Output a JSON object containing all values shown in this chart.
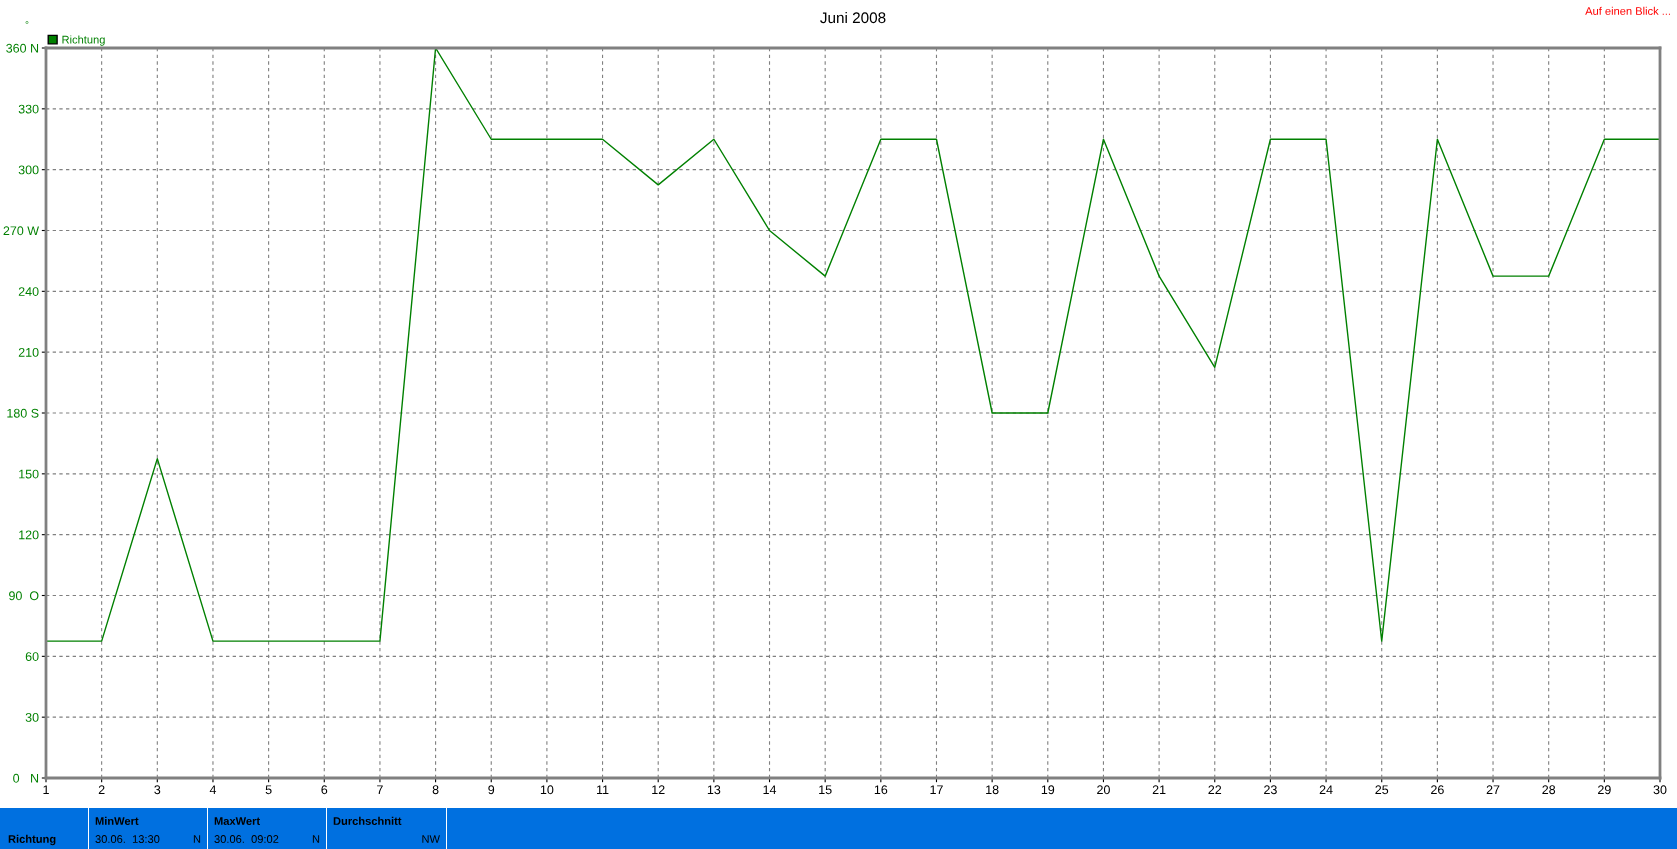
{
  "chart_data": {
    "type": "line",
    "title": "Juni 2008",
    "ylabel": "°",
    "x": [
      1,
      2,
      3,
      4,
      5,
      6,
      7,
      8,
      9,
      10,
      11,
      12,
      13,
      14,
      15,
      16,
      17,
      18,
      19,
      20,
      21,
      22,
      23,
      24,
      25,
      26,
      27,
      28,
      29,
      30
    ],
    "series": [
      {
        "name": "Richtung",
        "color": "#008000",
        "values": [
          67.5,
          67.5,
          157.5,
          67.5,
          67.5,
          67.5,
          67.5,
          360,
          315,
          315,
          315,
          292.5,
          315,
          270,
          247.5,
          315,
          315,
          180,
          180,
          315,
          247.5,
          202.5,
          315,
          315,
          67.5,
          315,
          247.5,
          247.5,
          315,
          315
        ]
      }
    ],
    "xlim": [
      1,
      30
    ],
    "xticks": [
      1,
      2,
      3,
      4,
      5,
      6,
      7,
      8,
      9,
      10,
      11,
      12,
      13,
      14,
      15,
      16,
      17,
      18,
      19,
      20,
      21,
      22,
      23,
      24,
      25,
      26,
      27,
      28,
      29,
      30
    ],
    "ylim": [
      0,
      360
    ],
    "yticks": [
      {
        "value": 0,
        "label": "0   N"
      },
      30,
      60,
      {
        "value": 90,
        "label": "90  O"
      },
      120,
      150,
      {
        "value": 180,
        "label": "180 S"
      },
      210,
      240,
      {
        "value": 270,
        "label": "270 W"
      },
      300,
      330,
      {
        "value": 360,
        "label": "360 N"
      }
    ],
    "grid": true,
    "legend": "top left",
    "marker": "none",
    "line_style": "solid",
    "annotations": [
      "Auf einen Blick ...",
      "Richtung",
      "MinWert",
      "30.06.  13:30",
      "N",
      "MaxWert",
      "30.06.  09:02",
      "N",
      "Durchschnitt",
      "NW"
    ]
  }
}
